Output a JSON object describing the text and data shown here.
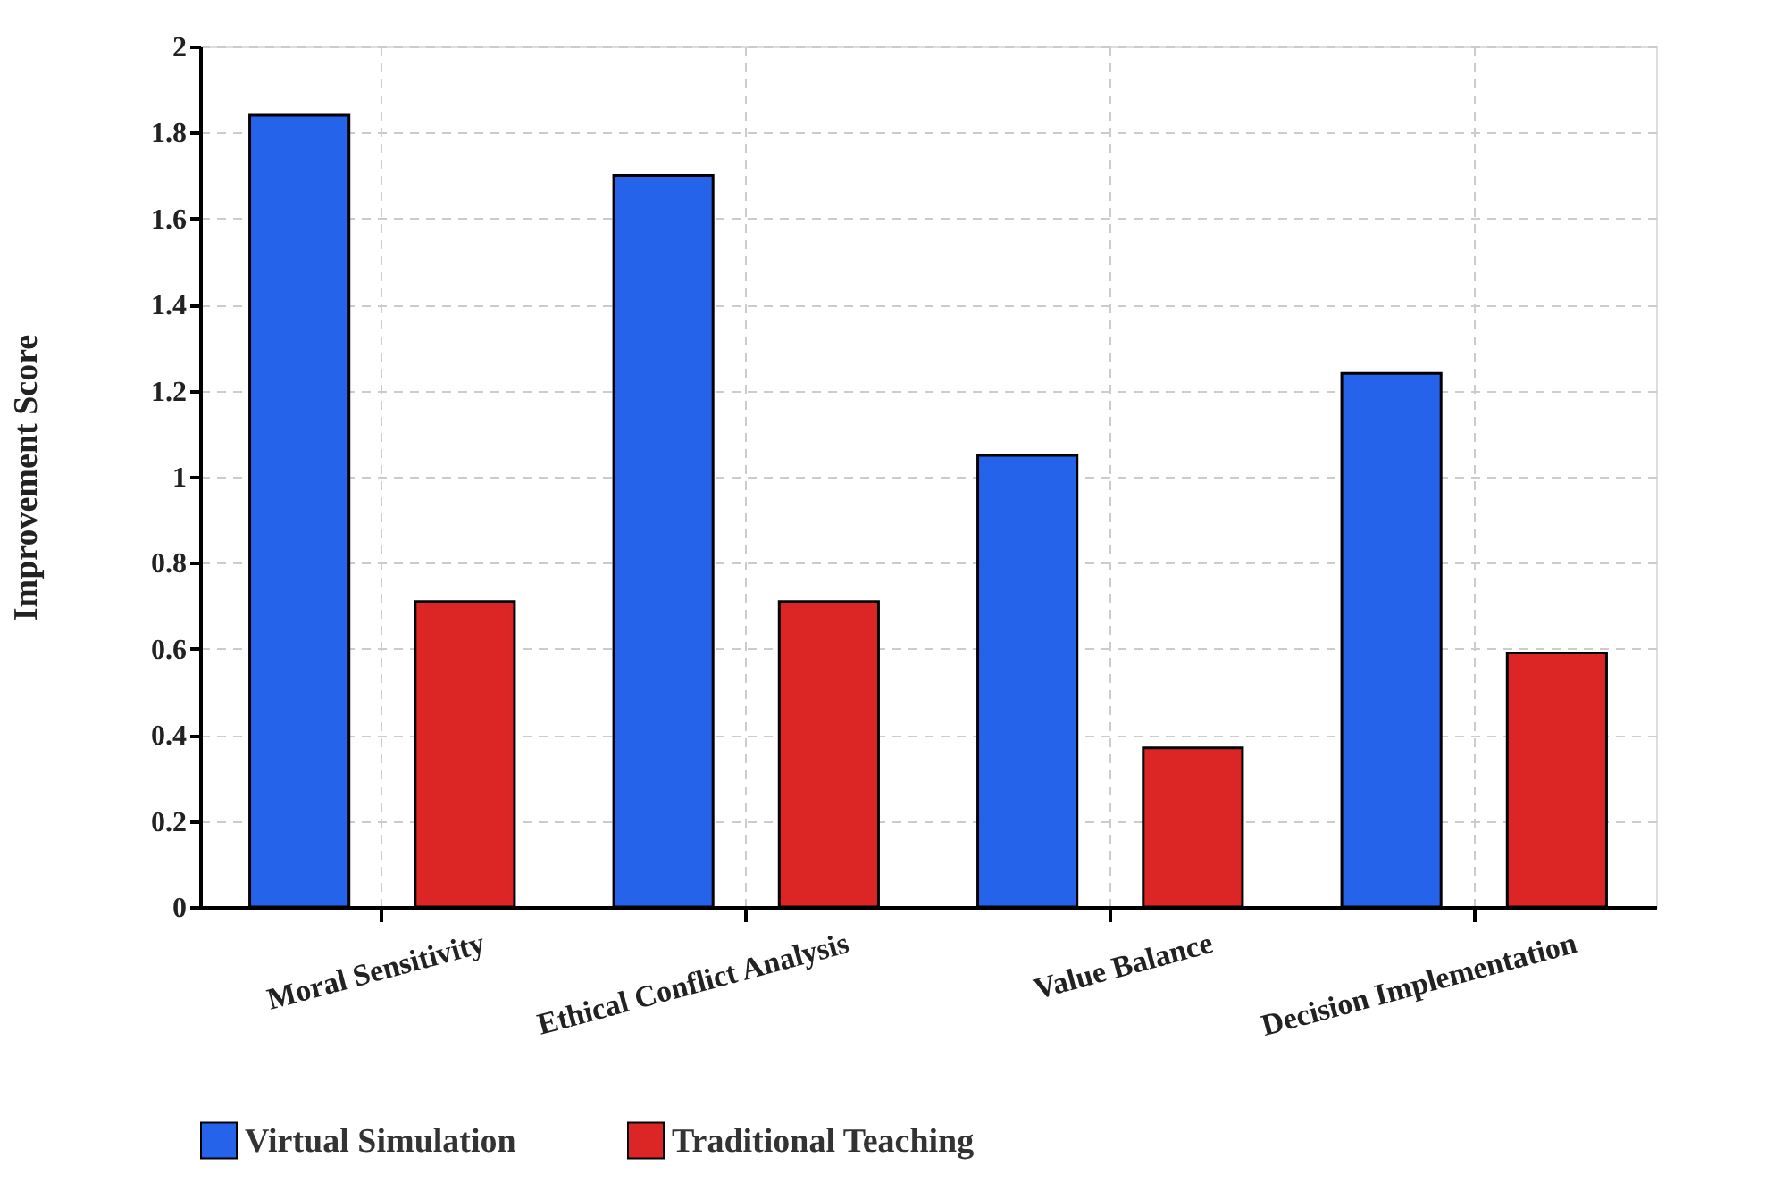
{
  "chart_data": {
    "type": "bar",
    "ylabel": "Improvement Score",
    "categories": [
      "Moral Sensitivity",
      "Ethical Conflict Analysis",
      "Value Balance",
      "Decision Implementation"
    ],
    "series": [
      {
        "name": "Virtual Simulation",
        "color": "#2563eb",
        "values": [
          1.84,
          1.7,
          1.05,
          1.24
        ]
      },
      {
        "name": "Traditional Teaching",
        "color": "#dc2626",
        "values": [
          0.71,
          0.71,
          0.37,
          0.59
        ]
      }
    ],
    "ylim": [
      0,
      2
    ],
    "yticks": [
      0,
      0.2,
      0.4,
      0.6,
      0.8,
      1,
      1.2,
      1.4,
      1.6,
      1.8,
      2
    ],
    "grid": true,
    "legend": "bottom"
  }
}
